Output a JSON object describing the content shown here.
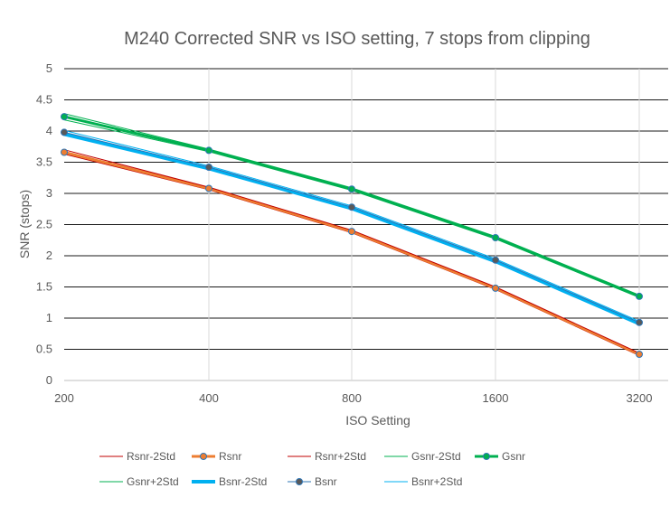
{
  "chart_data": {
    "type": "line",
    "title": "M240 Corrected SNR vs ISO setting, 7 stops from clipping",
    "xlabel": "ISO Setting",
    "ylabel": "SNR (stops)",
    "x": [
      200,
      400,
      800,
      1600,
      3200
    ],
    "x_tick_labels": [
      "200",
      "400",
      "800",
      "1600",
      "3200"
    ],
    "x_scale": "log2",
    "ylim": [
      0,
      5
    ],
    "y_tick_labels": [
      "0",
      "0.5",
      "1",
      "1.5",
      "2",
      "2.5",
      "3",
      "3.5",
      "4",
      "4.5",
      "5"
    ],
    "grid": "horizontal major gridlines",
    "legend_position": "bottom",
    "series": [
      {
        "name": "Rsnr-2Std",
        "color": "#c00000",
        "width": 1,
        "marker": false,
        "values": [
          3.63,
          3.06,
          2.37,
          1.46,
          0.4
        ]
      },
      {
        "name": "Rsnr",
        "color": "#ed7d31",
        "width": 3,
        "marker": true,
        "values": [
          3.66,
          3.08,
          2.39,
          1.48,
          0.42
        ]
      },
      {
        "name": "Rsnr+2Std",
        "color": "#c00000",
        "width": 1,
        "marker": false,
        "values": [
          3.7,
          3.1,
          2.41,
          1.5,
          0.44
        ]
      },
      {
        "name": "Gsnr-2Std",
        "color": "#00b050",
        "width": 1,
        "marker": false,
        "values": [
          4.18,
          3.67,
          3.05,
          2.27,
          1.33
        ]
      },
      {
        "name": "Gsnr",
        "color": "#00b050",
        "width": 3,
        "marker": true,
        "values": [
          4.23,
          3.69,
          3.07,
          2.29,
          1.35
        ]
      },
      {
        "name": "Gsnr+2Std",
        "color": "#00b050",
        "width": 1,
        "marker": false,
        "values": [
          4.28,
          3.71,
          3.09,
          2.31,
          1.37
        ]
      },
      {
        "name": "Bsnr-2Std",
        "color": "#00b0f0",
        "width": 4,
        "marker": false,
        "values": [
          3.95,
          3.4,
          2.76,
          1.91,
          0.91
        ]
      },
      {
        "name": "Bsnr",
        "color": "#2e75b6",
        "width": 1,
        "marker": true,
        "values": [
          3.98,
          3.42,
          2.78,
          1.93,
          0.93
        ]
      },
      {
        "name": "Bsnr+2Std",
        "color": "#00b0f0",
        "width": 1,
        "marker": false,
        "values": [
          4.01,
          3.44,
          2.8,
          1.95,
          0.95
        ]
      }
    ]
  }
}
